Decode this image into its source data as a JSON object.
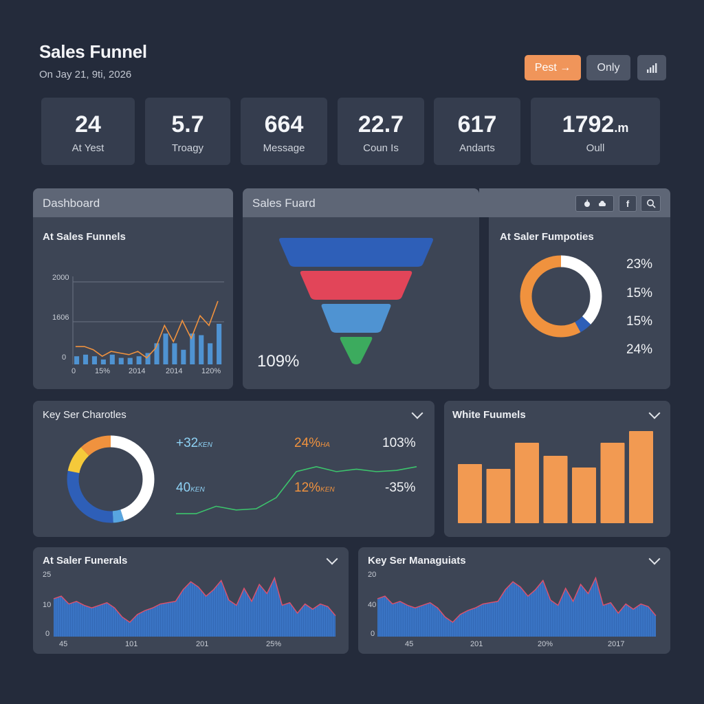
{
  "header": {
    "title": "Sales Funnel",
    "subtitle": "On Jay 21, 9ti, 2026",
    "btn_primary": "Pest →",
    "btn_secondary": "Only",
    "btn_icon": "bar-chart-icon"
  },
  "stats": [
    {
      "value": "24",
      "label": "At Yest"
    },
    {
      "value": "5.7",
      "label": "Troagy"
    },
    {
      "value": "664",
      "label": "Message"
    },
    {
      "value": "22.7",
      "label": "Coun Is"
    },
    {
      "value": "617",
      "label": "Andarts"
    },
    {
      "value": "1792",
      "value_suffix": ".m",
      "label": "Oull"
    }
  ],
  "dashboard": {
    "header": "Dashboard",
    "title": "At Sales Funnels",
    "y_ticks": [
      "2000",
      "1606",
      "0"
    ],
    "x_ticks": [
      "0",
      "15%",
      "2014",
      "2014",
      "120%"
    ]
  },
  "funnel": {
    "header": "Sales Fuard",
    "tools": [
      "apple-icon",
      "cloud-icon",
      "f",
      "search-icon"
    ],
    "tool_f_label": "f",
    "label": "109%",
    "stages": [
      {
        "color": "#2e5fb8",
        "share": 1.0
      },
      {
        "color": "#e24559",
        "share": 0.73
      },
      {
        "color": "#4f93d2",
        "share": 0.46
      },
      {
        "color": "#3cab5e",
        "share": 0.22
      }
    ]
  },
  "properties": {
    "title": "At Saler Fumpoties",
    "percents": [
      "23%",
      "15%",
      "15%",
      "24%"
    ],
    "donut": [
      {
        "color": "#ffffff",
        "share": 0.37
      },
      {
        "color": "#2e5fb8",
        "share": 0.05
      },
      {
        "color": "#f0923e",
        "share": 0.58
      }
    ]
  },
  "characteristics": {
    "title": "Key Ser Charotles",
    "donut": [
      {
        "color": "#ffffff",
        "share": 0.45
      },
      {
        "color": "#58a5e0",
        "share": 0.04
      },
      {
        "color": "#2e5fb8",
        "share": 0.29
      },
      {
        "color": "#f5c93a",
        "share": 0.1
      },
      {
        "color": "#f0923e",
        "share": 0.12
      }
    ],
    "metrics": [
      {
        "value": "+32",
        "unit": "KEN",
        "color": "#8ed1f4"
      },
      {
        "value": "40",
        "unit": "KEN",
        "color": "#8ed1f4"
      },
      {
        "value": "24%",
        "unit": "HA",
        "color": "#f0923e"
      },
      {
        "value": "12%",
        "unit": "KEN",
        "color": "#f0923e"
      },
      {
        "value": "103%",
        "unit": "",
        "color": "#f1f3f6"
      },
      {
        "value": "-35%",
        "unit": "",
        "color": "#f1f3f6"
      }
    ],
    "line": [
      2,
      2,
      14,
      8,
      10,
      28,
      70,
      78,
      70,
      74,
      70,
      72,
      78
    ]
  },
  "white_funnels": {
    "title": "White Fuumels",
    "bars": [
      86,
      79,
      117,
      98,
      81,
      117,
      134
    ],
    "bar_color": "#f29a52"
  },
  "chart_data": [
    {
      "type": "bar",
      "title": "At Sales Funnels",
      "y_ticks": [
        "2000",
        "1606",
        "0"
      ],
      "x_ticks": [
        "0",
        "15%",
        "2014",
        "2014",
        "120%"
      ],
      "bars": [
        10,
        12,
        10,
        6,
        12,
        8,
        8,
        10,
        14,
        26,
        38,
        26,
        18,
        38,
        36,
        26,
        50
      ],
      "line": [
        22,
        22,
        18,
        10,
        16,
        14,
        12,
        16,
        8,
        20,
        48,
        28,
        54,
        32,
        60,
        48,
        78
      ],
      "line_color": "#f0923e",
      "bar_color": "#4f93d2",
      "ylim": [
        0,
        100
      ]
    },
    {
      "type": "area",
      "title": "At Saler Funerals",
      "y_ticks": [
        "25",
        "10",
        "0"
      ],
      "x_ticks": [
        "45",
        "101",
        "201",
        "25%"
      ],
      "values": [
        58,
        62,
        50,
        54,
        48,
        44,
        48,
        52,
        44,
        30,
        22,
        34,
        40,
        44,
        50,
        52,
        54,
        72,
        84,
        76,
        62,
        72,
        86,
        56,
        48,
        74,
        54,
        80,
        66,
        90,
        48,
        52,
        36,
        50,
        42,
        50,
        46,
        32
      ],
      "fill_color": "#3a74c4",
      "line_color": "#e2506a",
      "ylim": [
        0,
        100
      ]
    },
    {
      "type": "area",
      "title": "Key Ser Managuiats",
      "y_ticks": [
        "20",
        "40",
        "0"
      ],
      "x_ticks": [
        "45",
        "201",
        "20%",
        "2017"
      ],
      "values": [
        58,
        62,
        50,
        54,
        48,
        44,
        48,
        52,
        44,
        30,
        22,
        34,
        40,
        44,
        50,
        52,
        54,
        72,
        84,
        76,
        62,
        72,
        86,
        56,
        48,
        74,
        54,
        80,
        66,
        90,
        48,
        52,
        36,
        50,
        42,
        50,
        46,
        32
      ],
      "fill_color": "#3a74c4",
      "line_color": "#e2506a",
      "ylim": [
        0,
        100
      ]
    }
  ]
}
